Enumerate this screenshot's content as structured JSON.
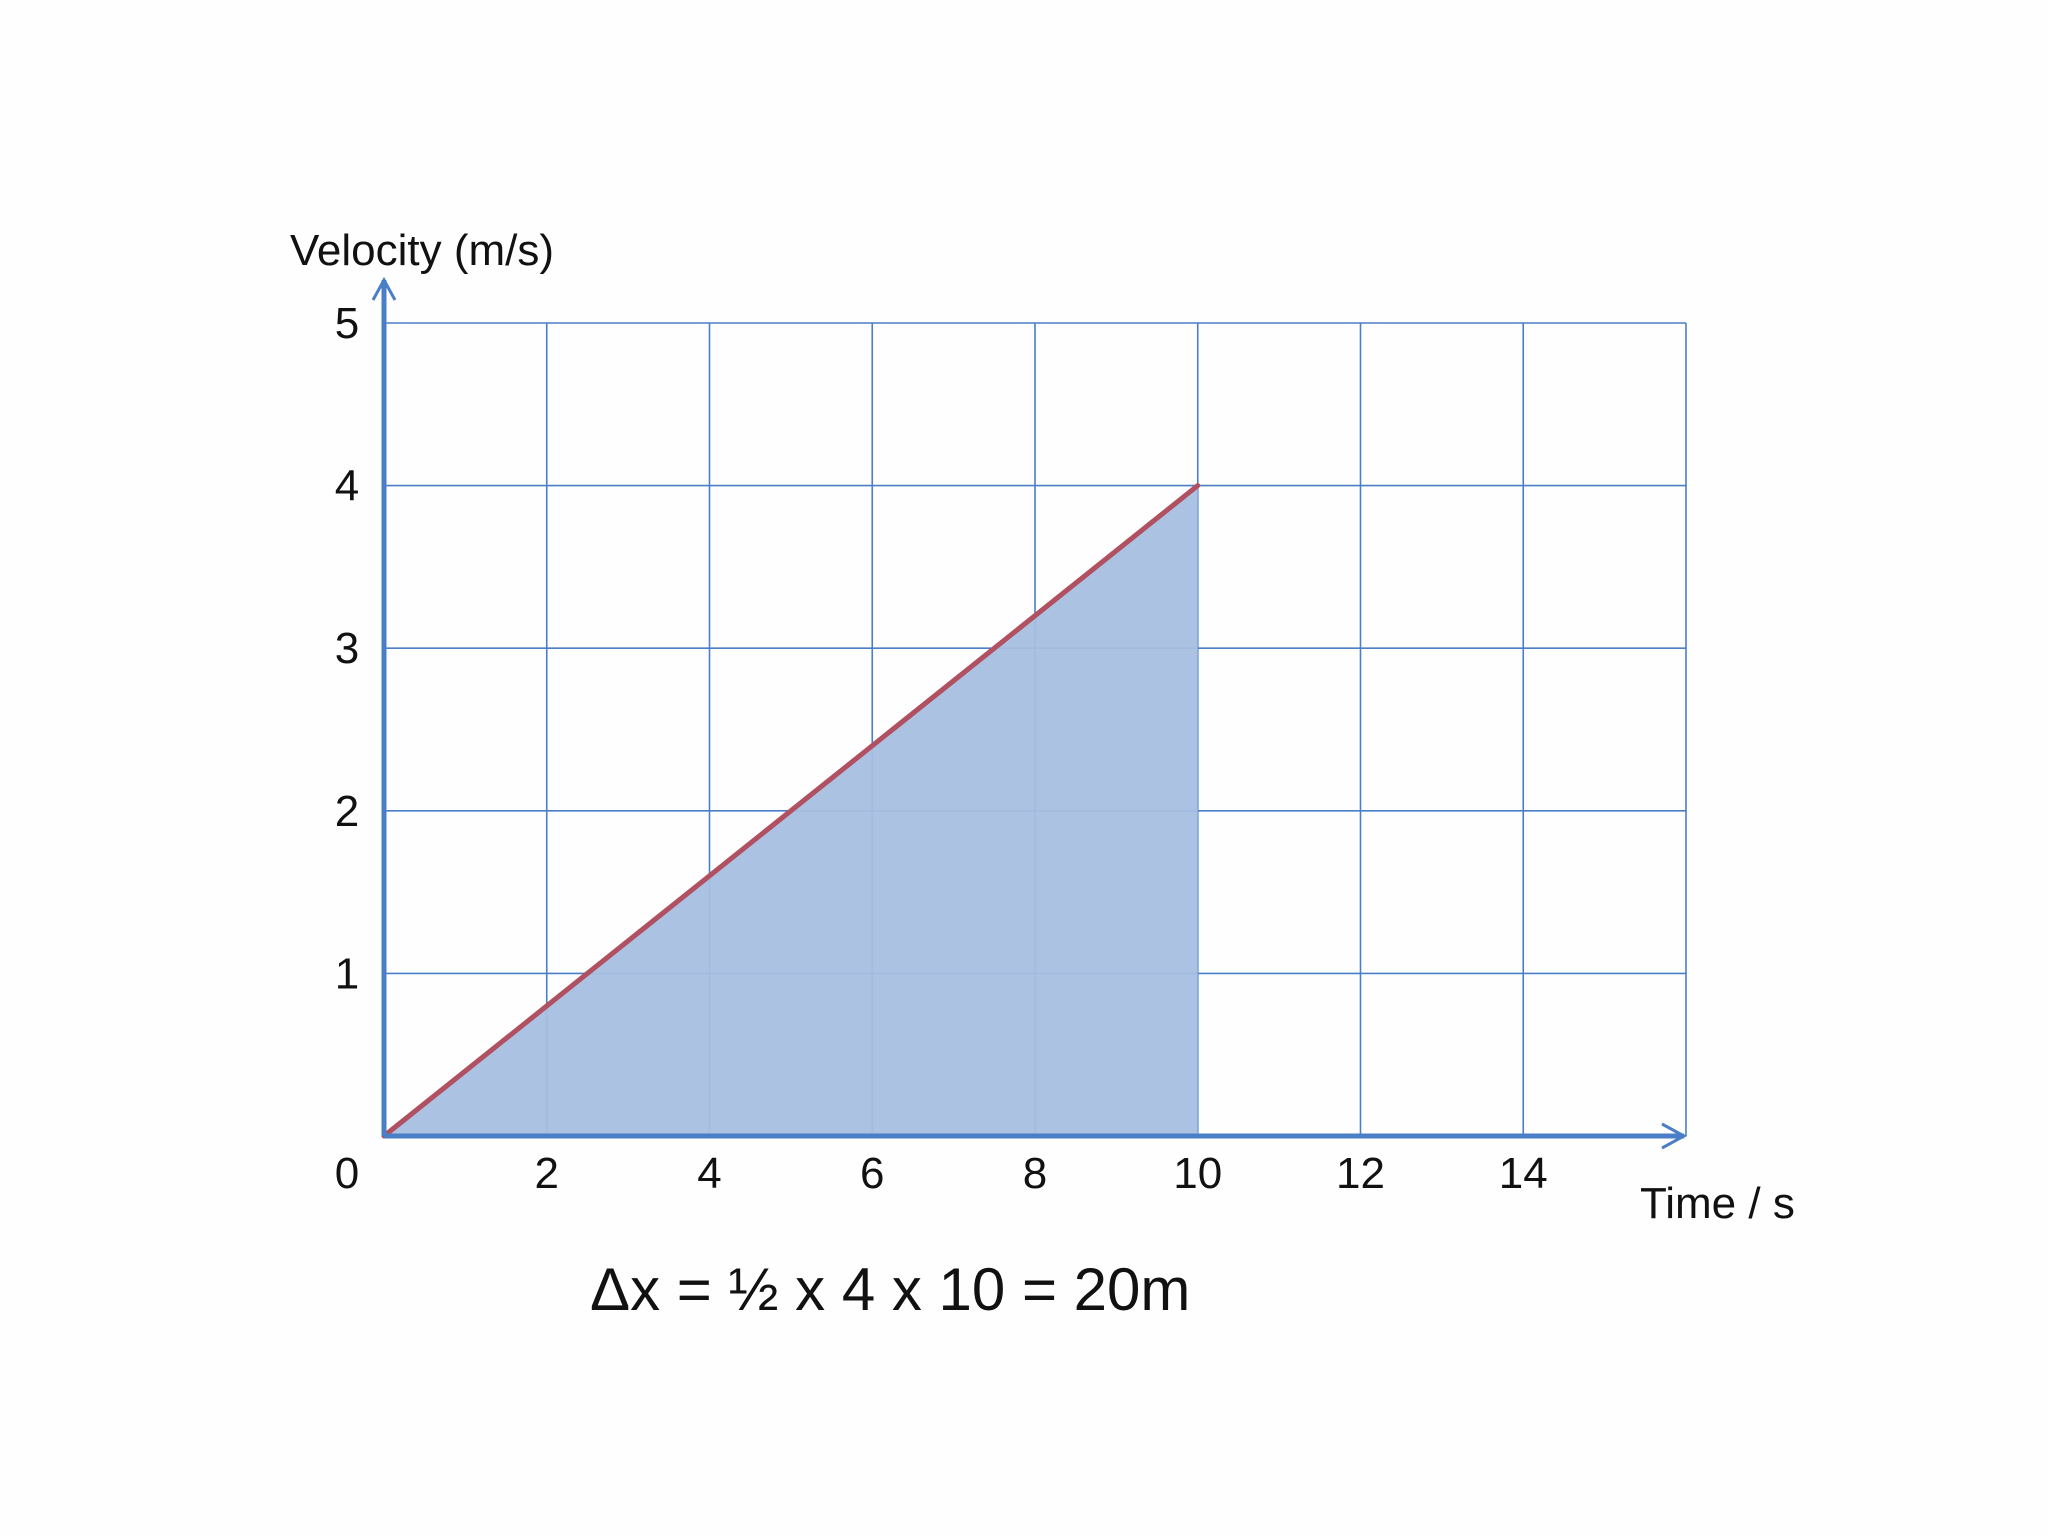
{
  "chart_data": {
    "type": "line",
    "xlabel": "Time / s",
    "ylabel": "Velocity (m/s)",
    "xlim": [
      0,
      16
    ],
    "ylim": [
      0,
      5
    ],
    "x_ticks": [
      "2",
      "4",
      "6",
      "8",
      "10",
      "12",
      "14"
    ],
    "y_ticks": [
      "1",
      "2",
      "3",
      "4",
      "5"
    ],
    "origin_label": "0",
    "grid": true,
    "series": [
      {
        "points": [
          [
            0,
            0
          ],
          [
            10,
            4
          ]
        ],
        "color": "#b05060",
        "fill_to_axis": true,
        "fill_color": "#a6bfe0"
      }
    ],
    "annotation": "Δx = ½ x 4 x 10 = 20m",
    "axis_color": "#4a7ec6",
    "grid_color": "#4a7ec6"
  }
}
